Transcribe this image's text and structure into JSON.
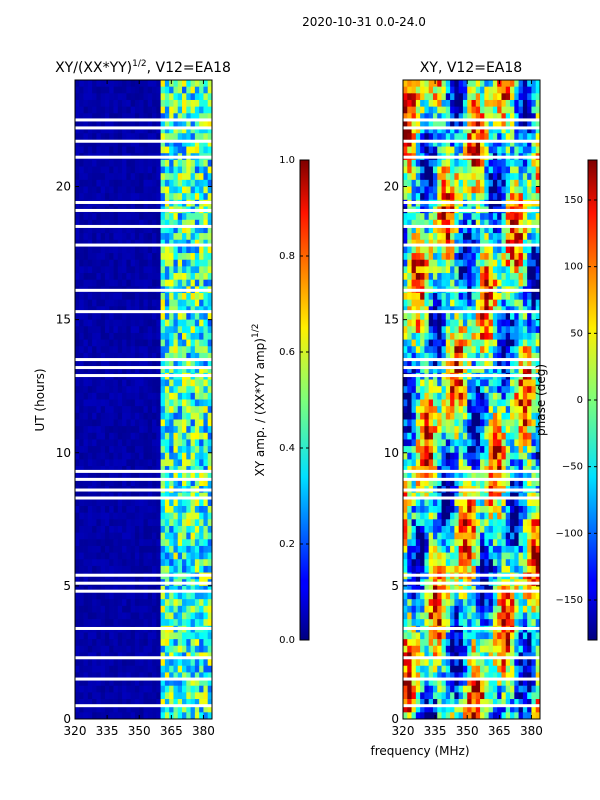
{
  "figure_title": "2020-10-31 0.0-24.0",
  "chart_data": [
    {
      "type": "heatmap",
      "title_main": "XY/(XX*YY)",
      "title_sup": "1/2",
      "title_suffix": ", V12=EA18",
      "xlabel": "",
      "ylabel": "UT (hours)",
      "xlim": [
        320,
        384
      ],
      "ylim": [
        0,
        24
      ],
      "xticks": [
        320,
        335,
        350,
        365,
        380
      ],
      "yticks": [
        0,
        5,
        10,
        15,
        20
      ],
      "colorscale": "jet",
      "vmin": 0.0,
      "vmax": 1.0,
      "colorbar_ticks": [
        "0.0",
        "0.2",
        "0.4",
        "0.6",
        "0.8",
        "1.0"
      ],
      "colorbar_label_main": "XY amp. / (XX*YY amp)",
      "colorbar_label_sup": "1/2",
      "signal_band_mhz": [
        360,
        384
      ],
      "flagged_hours": [
        0.5,
        1.5,
        2.3,
        3.4,
        4.8,
        5.1,
        5.4,
        8.3,
        8.6,
        9.0,
        9.3,
        12.9,
        13.2,
        13.5,
        15.3,
        16.1,
        17.8,
        18.5,
        19.1,
        19.4,
        21.1,
        21.7,
        22.2,
        22.5
      ]
    },
    {
      "type": "heatmap",
      "title": "XY, V12=EA18",
      "xlabel": "frequency (MHz)",
      "ylabel": "",
      "xlim": [
        320,
        384
      ],
      "ylim": [
        0,
        24
      ],
      "xticks": [
        320,
        335,
        350,
        365,
        380
      ],
      "yticks": [
        0,
        5,
        10,
        15,
        20
      ],
      "colorscale": "jet",
      "vmin": -180,
      "vmax": 180,
      "colorbar_ticks": [
        "150",
        "100",
        "50",
        "0",
        "−50",
        "−100",
        "−150"
      ],
      "colorbar_tick_values": [
        150,
        100,
        50,
        0,
        -50,
        -100,
        -150
      ],
      "colorbar_label": "phase (deg)",
      "flagged_hours": [
        0.5,
        1.5,
        2.3,
        3.4,
        4.8,
        5.1,
        5.4,
        8.3,
        8.6,
        9.0,
        9.3,
        12.9,
        13.2,
        13.5,
        15.3,
        16.1,
        17.8,
        18.5,
        19.1,
        19.4,
        21.1,
        21.7,
        22.2,
        22.5
      ]
    }
  ]
}
